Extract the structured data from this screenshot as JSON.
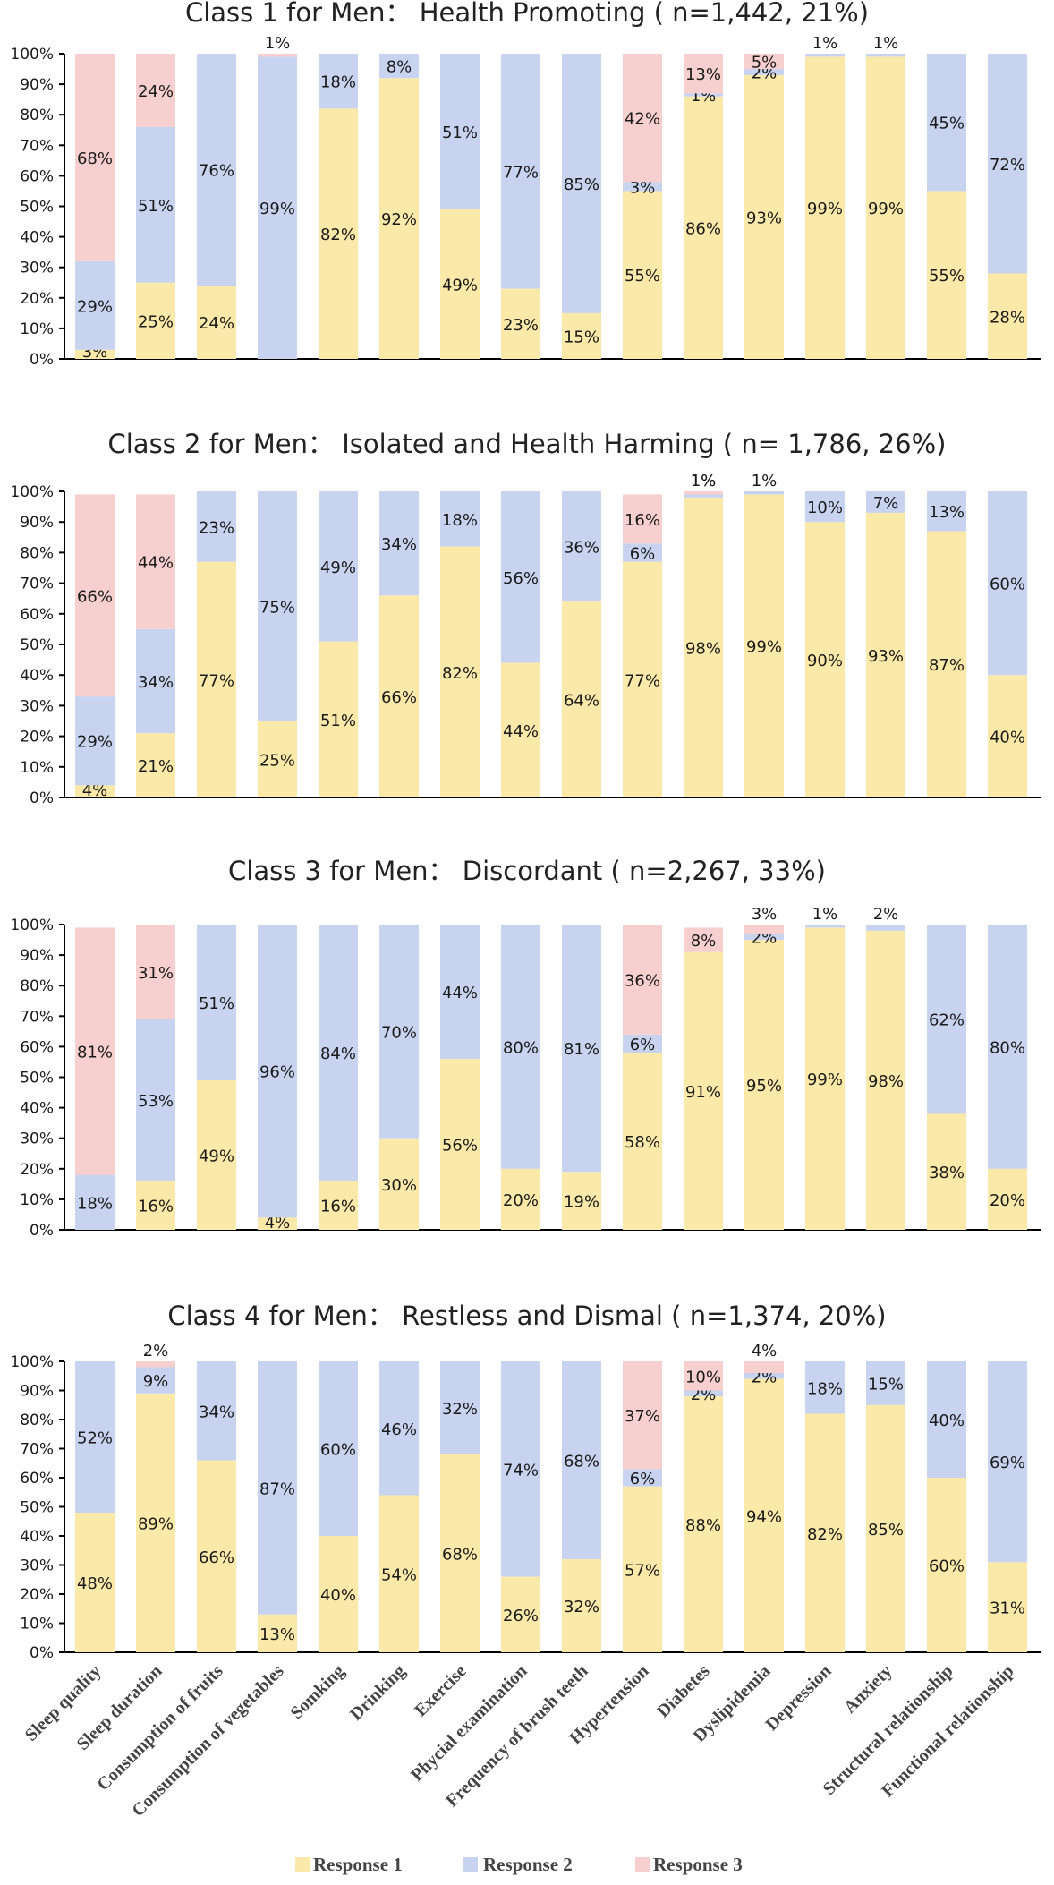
{
  "categories": [
    "Sleep quality",
    "Sleep duration",
    "Consumption of fruits",
    "Consumption of vegetables",
    "Somking",
    "Drinking",
    "Exercise",
    "Phycial examination",
    "Frequency of brush teeth",
    "Hypertension",
    "Diabetes",
    "Dyslipidemia",
    "Depression",
    "Anxiety",
    "Structural relationship",
    "Functional relationship"
  ],
  "colors": {
    "response1": "#fbe9a9",
    "response2": "#c8d3ef",
    "response3": "#f7cfcf",
    "axis": "#000000",
    "text": "#1a1a1a"
  },
  "chart_data": [
    {
      "type": "bar",
      "title": "Class 1 for Men： Health Promoting ( n=1,442, 21%)",
      "yticks": [
        "0%",
        "10%",
        "20%",
        "30%",
        "40%",
        "50%",
        "60%",
        "70%",
        "80%",
        "90%",
        "100%"
      ],
      "ylim": [
        0,
        100
      ],
      "series": [
        {
          "name": "Response 1",
          "values": [
            3,
            25,
            24,
            0,
            82,
            92,
            49,
            23,
            15,
            55,
            86,
            93,
            99,
            99,
            55,
            28
          ],
          "labels": [
            "3%",
            "25%",
            "24%",
            "",
            "82%",
            "92%",
            "49%",
            "23%",
            "15%",
            "55%",
            "86%",
            "93%",
            "99%",
            "99%",
            "55%",
            "28%"
          ]
        },
        {
          "name": "Response 2",
          "values": [
            29,
            51,
            76,
            99,
            18,
            8,
            51,
            77,
            85,
            3,
            1,
            2,
            1,
            1,
            45,
            72
          ],
          "labels": [
            "29%",
            "51%",
            "76%",
            "99%",
            "18%",
            "8%",
            "51%",
            "77%",
            "85%",
            "3%",
            "1%",
            "2%",
            "1%",
            "1%",
            "45%",
            "72%"
          ]
        },
        {
          "name": "Response 3",
          "values": [
            68,
            24,
            0,
            1,
            0,
            0,
            0,
            0,
            0,
            42,
            13,
            5,
            0,
            0,
            0,
            0
          ],
          "labels": [
            "68%",
            "24%",
            "",
            "1%",
            "",
            "",
            "",
            "",
            "",
            "42%",
            "13%",
            "5%",
            "",
            "",
            "",
            ""
          ]
        }
      ]
    },
    {
      "type": "bar",
      "title": "Class 2 for Men： Isolated and Health Harming ( n= 1,786, 26%)",
      "yticks": [
        "0%",
        "10%",
        "20%",
        "30%",
        "40%",
        "50%",
        "60%",
        "70%",
        "80%",
        "90%",
        "100%"
      ],
      "ylim": [
        0,
        100
      ],
      "series": [
        {
          "name": "Response 1",
          "values": [
            4,
            21,
            77,
            25,
            51,
            66,
            82,
            44,
            64,
            77,
            98,
            99,
            90,
            93,
            87,
            40
          ],
          "labels": [
            "4%",
            "21%",
            "77%",
            "25%",
            "51%",
            "66%",
            "82%",
            "44%",
            "64%",
            "77%",
            "98%",
            "99%",
            "90%",
            "93%",
            "87%",
            "40%"
          ]
        },
        {
          "name": "Response 2",
          "values": [
            29,
            34,
            23,
            75,
            49,
            34,
            18,
            56,
            36,
            6,
            1,
            1,
            10,
            7,
            13,
            60
          ],
          "labels": [
            "29%",
            "34%",
            "23%",
            "75%",
            "49%",
            "34%",
            "18%",
            "56%",
            "36%",
            "6%",
            "1%",
            "1%",
            "10%",
            "7%",
            "13%",
            "60%"
          ]
        },
        {
          "name": "Response 3",
          "values": [
            66,
            44,
            0,
            0,
            0,
            0,
            0,
            0,
            0,
            16,
            1,
            0,
            0,
            0,
            0,
            0
          ],
          "labels": [
            "66%",
            "44%",
            "",
            "",
            "",
            "",
            "",
            "",
            "",
            "16%",
            "1%",
            "",
            "",
            "",
            "",
            ""
          ]
        }
      ]
    },
    {
      "type": "bar",
      "title": "Class 3 for Men： Discordant ( n=2,267, 33%)",
      "yticks": [
        "0%",
        "10%",
        "20%",
        "30%",
        "40%",
        "50%",
        "60%",
        "70%",
        "80%",
        "90%",
        "100%"
      ],
      "ylim": [
        0,
        100
      ],
      "series": [
        {
          "name": "Response 1",
          "values": [
            0,
            16,
            49,
            4,
            16,
            30,
            56,
            20,
            19,
            58,
            91,
            95,
            99,
            98,
            38,
            20
          ],
          "labels": [
            "",
            "16%",
            "49%",
            "4%",
            "16%",
            "30%",
            "56%",
            "20%",
            "19%",
            "58%",
            "91%",
            "95%",
            "99%",
            "98%",
            "38%",
            "20%"
          ]
        },
        {
          "name": "Response 2",
          "values": [
            18,
            53,
            51,
            96,
            84,
            70,
            44,
            80,
            81,
            6,
            0,
            2,
            1,
            2,
            62,
            80
          ],
          "labels": [
            "18%",
            "53%",
            "51%",
            "96%",
            "84%",
            "70%",
            "44%",
            "80%",
            "81%",
            "6%",
            "",
            "2%",
            "1%",
            "2%",
            "62%",
            "80%"
          ]
        },
        {
          "name": "Response 3",
          "values": [
            81,
            31,
            0,
            0,
            0,
            0,
            0,
            0,
            0,
            36,
            8,
            3,
            0,
            0,
            0,
            0
          ],
          "labels": [
            "81%",
            "31%",
            "",
            "",
            "",
            "",
            "",
            "",
            "",
            "36%",
            "8%",
            "3%",
            "",
            "",
            "",
            ""
          ]
        }
      ]
    },
    {
      "type": "bar",
      "title": "Class 4 for Men： Restless and Dismal ( n=1,374, 20%)",
      "yticks": [
        "0%",
        "10%",
        "20%",
        "30%",
        "40%",
        "50%",
        "60%",
        "70%",
        "80%",
        "90%",
        "100%"
      ],
      "ylim": [
        0,
        100
      ],
      "series": [
        {
          "name": "Response 1",
          "values": [
            48,
            89,
            66,
            13,
            40,
            54,
            68,
            26,
            32,
            57,
            88,
            94,
            82,
            85,
            60,
            31
          ],
          "labels": [
            "48%",
            "89%",
            "66%",
            "13%",
            "40%",
            "54%",
            "68%",
            "26%",
            "32%",
            "57%",
            "88%",
            "94%",
            "82%",
            "85%",
            "60%",
            "31%"
          ]
        },
        {
          "name": "Response 2",
          "values": [
            52,
            9,
            34,
            87,
            60,
            46,
            32,
            74,
            68,
            6,
            2,
            2,
            18,
            15,
            40,
            69
          ],
          "labels": [
            "52%",
            "9%",
            "34%",
            "87%",
            "60%",
            "46%",
            "32%",
            "74%",
            "68%",
            "6%",
            "2%",
            "2%",
            "18%",
            "15%",
            "40%",
            "69%"
          ]
        },
        {
          "name": "Response 3",
          "values": [
            0,
            2,
            0,
            0,
            0,
            0,
            0,
            0,
            0,
            37,
            10,
            4,
            0,
            0,
            0,
            0
          ],
          "labels": [
            "",
            "2%",
            "",
            "",
            "",
            "",
            "",
            "",
            "",
            "37%",
            "10%",
            "4%",
            "",
            "",
            "",
            ""
          ]
        }
      ]
    }
  ],
  "legend": [
    {
      "label": "Response 1",
      "color": "#fbe9a9"
    },
    {
      "label": "Response 2",
      "color": "#c8d3ef"
    },
    {
      "label": "Response 3",
      "color": "#f7cfcf"
    }
  ]
}
